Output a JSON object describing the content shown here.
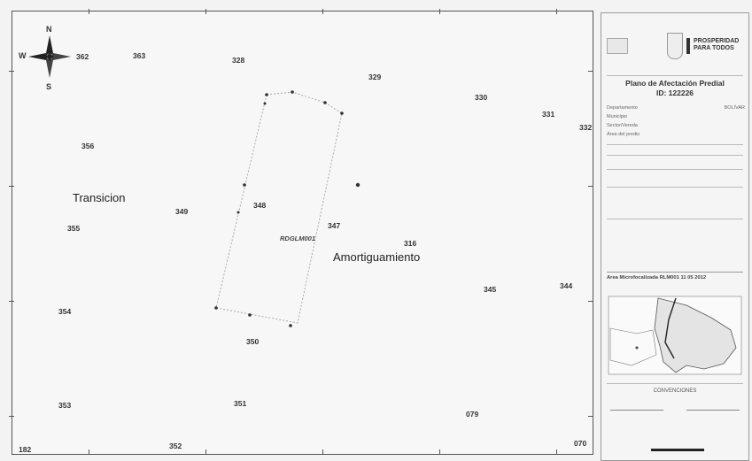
{
  "compass": {
    "n": "N",
    "s": "S",
    "w": "W"
  },
  "map": {
    "zones": {
      "transition": "Transicion",
      "buffer": "Amortiguamiento"
    },
    "parcel_code": "RDGLM001",
    "plot_labels": [
      "362",
      "363",
      "328",
      "329",
      "330",
      "331",
      "332",
      "356",
      "349",
      "348",
      "347",
      "316",
      "355",
      "345",
      "344",
      "354",
      "350",
      "353",
      "351",
      "079",
      "182",
      "352",
      "070"
    ]
  },
  "legend": {
    "brand_line1": "PROSPERIDAD",
    "brand_line2": "PARA TODOS",
    "title": "Plano de Afectación Predial",
    "id_line": "ID: 122226",
    "rows": [
      {
        "k": "Departamento",
        "v": "BOLÍVAR"
      },
      {
        "k": "Municipio",
        "v": ""
      },
      {
        "k": "Sector/Vereda",
        "v": ""
      },
      {
        "k": "Área del predio",
        "v": ""
      }
    ],
    "inset_title": "Área Microfocalizada RLM001 11 05 2012",
    "conventions": "CONVENCIONES",
    "conv_left": "",
    "conv_right": ""
  }
}
